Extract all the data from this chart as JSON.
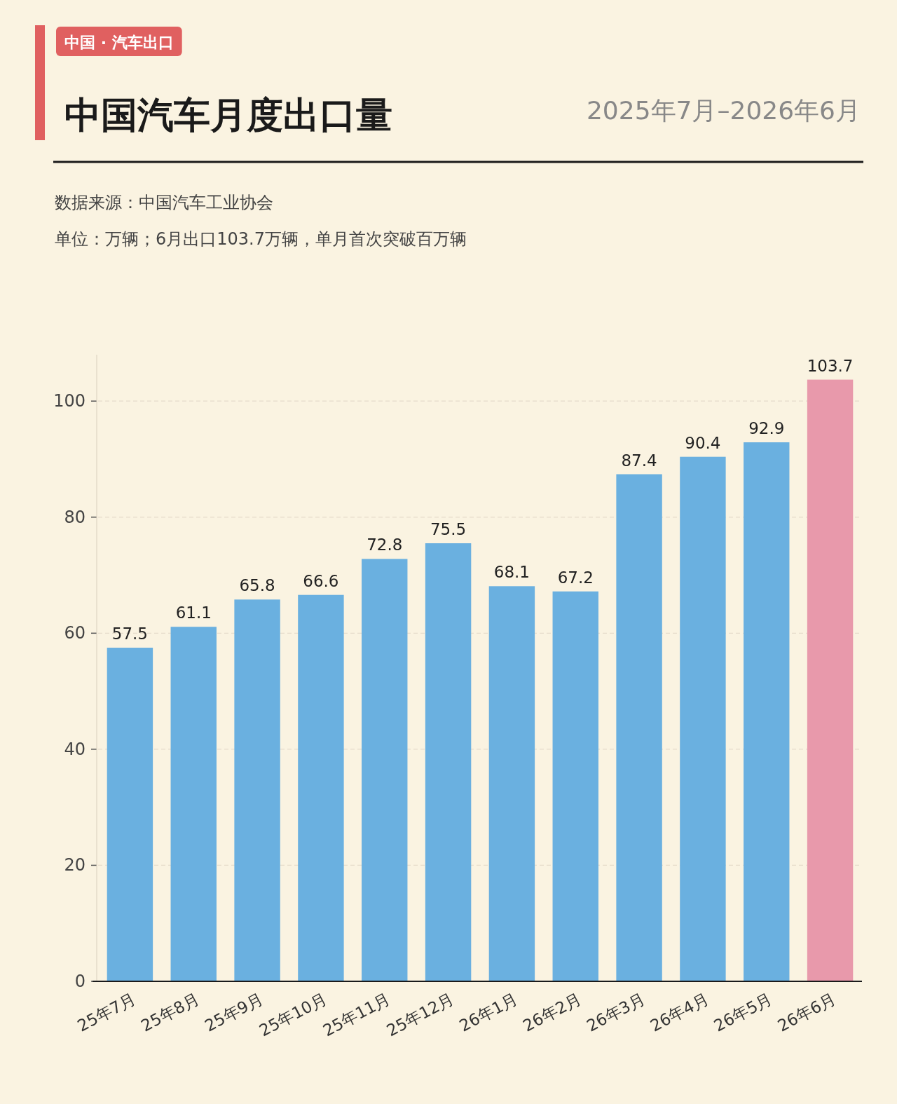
{
  "chart_data": {
    "type": "bar",
    "title": "中国汽车月度出口量",
    "subtitle": "2025年7月–2026年6月",
    "annotations": [
      "中国 · 汽车出口",
      "数据来源：中国汽车工业协会",
      "单位：万辆；6月出口103.7万辆，单月首次突破百万辆"
    ],
    "categories": [
      "25年7月",
      "25年8月",
      "25年9月",
      "25年10月",
      "25年11月",
      "25年12月",
      "26年1月",
      "26年2月",
      "26年3月",
      "26年4月",
      "26年5月",
      "26年6月"
    ],
    "values": [
      57.5,
      61.1,
      65.8,
      66.6,
      72.8,
      75.5,
      68.1,
      67.2,
      87.4,
      90.4,
      92.9,
      103.7
    ],
    "colors": [
      "#6ab0e0",
      "#6ab0e0",
      "#6ab0e0",
      "#6ab0e0",
      "#6ab0e0",
      "#6ab0e0",
      "#6ab0e0",
      "#6ab0e0",
      "#6ab0e0",
      "#6ab0e0",
      "#6ab0e0",
      "#e899ab"
    ],
    "ylim": [
      0,
      108
    ],
    "yticks": [
      0,
      20,
      40,
      60,
      80,
      100
    ],
    "grid": "y",
    "data_labels": true
  }
}
